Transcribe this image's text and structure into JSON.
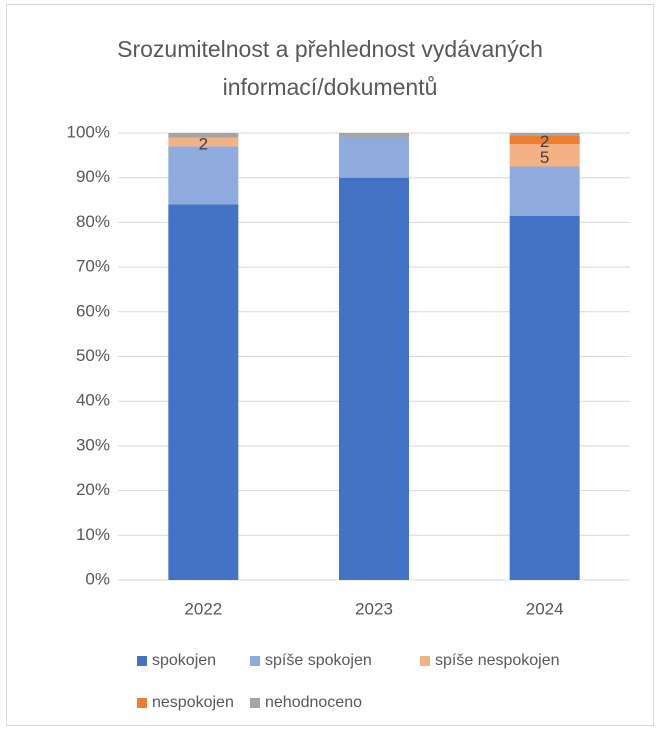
{
  "chart_data": {
    "type": "stacked_bar",
    "title": "Srozumitelnost a přehlednost vydávaných informací/dokumentů",
    "categories": [
      "2022",
      "2023",
      "2024"
    ],
    "series": [
      {
        "name": "spokojen",
        "color": "#4472c4",
        "values": [
          84,
          90,
          81.5
        ]
      },
      {
        "name": "spíše spokojen",
        "color": "#8faadc",
        "values": [
          13,
          9,
          11
        ]
      },
      {
        "name": "spíše nespokojen",
        "color": "#f4b183",
        "values": [
          2,
          0,
          5
        ],
        "value_labels": [
          "2",
          null,
          "5"
        ]
      },
      {
        "name": "nespokojen",
        "color": "#ed7d31",
        "values": [
          0,
          0,
          2
        ],
        "value_labels": [
          null,
          null,
          "2"
        ]
      },
      {
        "name": "nehodnoceno",
        "color": "#a5a5a5",
        "values": [
          1,
          1,
          0.5
        ]
      }
    ],
    "ylim": [
      0,
      100
    ],
    "yticks": [
      {
        "value": 0,
        "label": "0%"
      },
      {
        "value": 10,
        "label": "10%"
      },
      {
        "value": 20,
        "label": "20%"
      },
      {
        "value": 30,
        "label": "30%"
      },
      {
        "value": 40,
        "label": "40%"
      },
      {
        "value": 50,
        "label": "50%"
      },
      {
        "value": 60,
        "label": "60%"
      },
      {
        "value": 70,
        "label": "70%"
      },
      {
        "value": 80,
        "label": "80%"
      },
      {
        "value": 90,
        "label": "90%"
      },
      {
        "value": 100,
        "label": "100%"
      }
    ],
    "grid": true,
    "legend": "bottom"
  }
}
